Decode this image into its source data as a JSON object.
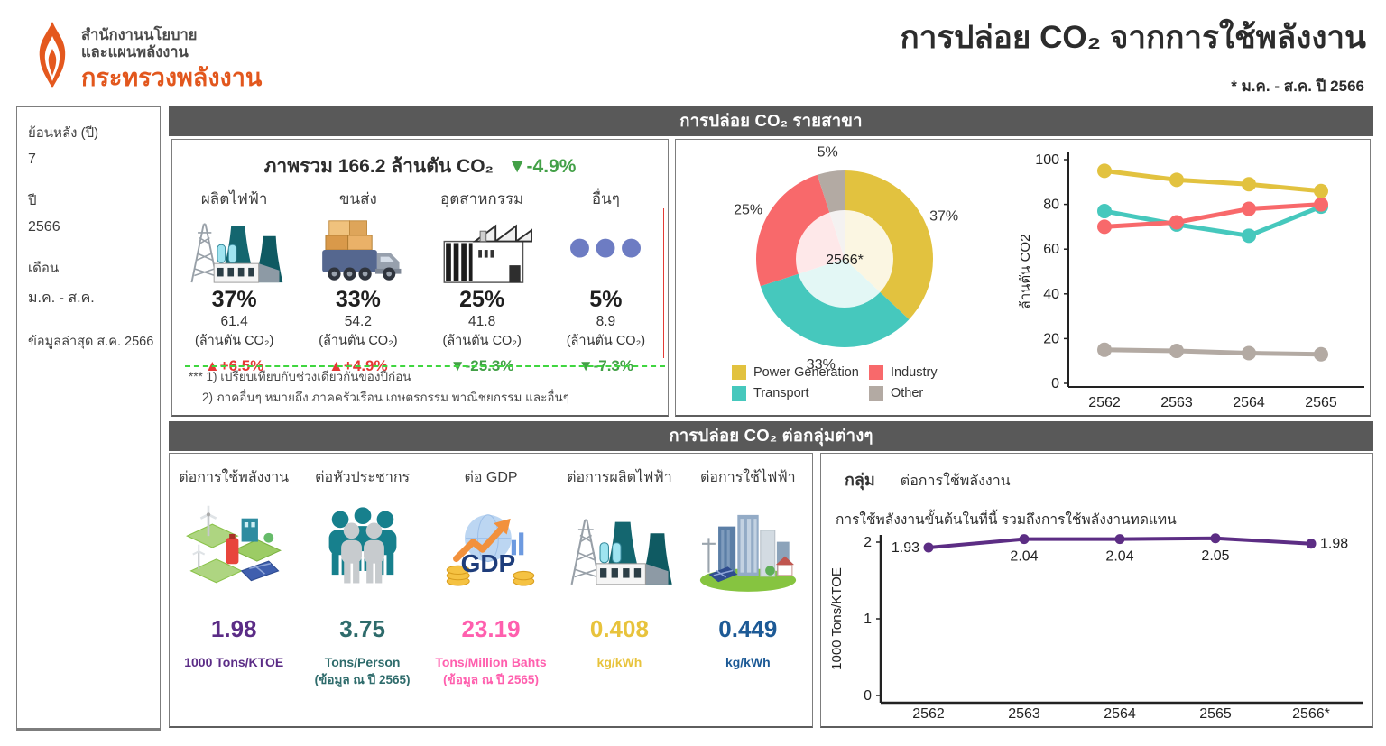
{
  "logo": {
    "line1": "สำนักงานนโยบาย",
    "line2": "และแผนพลังงาน",
    "line3": "กระทรวงพลังงาน"
  },
  "header": {
    "title": "การปล่อย CO₂ จากการใช้พลังงาน",
    "period_note": "* ม.ค. - ส.ค. ปี 2566"
  },
  "sidebar": {
    "fields": [
      {
        "label": "ย้อนหลัง (ปี)",
        "value": "7"
      },
      {
        "label": "ปี",
        "value": "2566"
      },
      {
        "label": "เดือน",
        "value": "ม.ค. - ส.ค."
      }
    ],
    "last_updated": "ข้อมูลล่าสุด ส.ค. 2566"
  },
  "sector_panel": {
    "header": "การปล่อย CO₂ รายสาขา",
    "overview_title": "ภาพรวม 166.2 ล้านตัน CO₂",
    "overview_change": "▼-4.9%",
    "overview_change_color": "#43a047",
    "categories": [
      {
        "label": "ผลิตไฟฟ้า",
        "percent": "37%",
        "value": "61.4",
        "unit": "(ล้านตัน CO₂)",
        "change": "▲+6.5%",
        "change_color": "#e53935"
      },
      {
        "label": "ขนส่ง",
        "percent": "33%",
        "value": "54.2",
        "unit": "(ล้านตัน CO₂)",
        "change": "▲+4.9%",
        "change_color": "#e53935"
      },
      {
        "label": "อุตสาหกรรม",
        "percent": "25%",
        "value": "41.8",
        "unit": "(ล้านตัน CO₂)",
        "change": "▼-25.3%",
        "change_color": "#43a047"
      },
      {
        "label": "อื่นๆ",
        "percent": "5%",
        "value": "8.9",
        "unit": "(ล้านตัน CO₂)",
        "change": "▼-7.3%",
        "change_color": "#43a047"
      }
    ],
    "footnotes": [
      "*** 1) เปรียบเทียบกับช่วงเดียวกันของปีก่อน",
      "2) ภาคอื่นๆ หมายถึง ภาคครัวเรือน เกษตรกรรม พาณิชยกรรม และอื่นๆ"
    ]
  },
  "metrics_panel": {
    "header": "การปล่อย CO₂ ต่อกลุ่มต่างๆ",
    "metrics": [
      {
        "label": "ต่อการใช้พลังงาน",
        "value": "1.98",
        "unit": "1000 Tons/KTOE",
        "note": "",
        "color": "#5b2c86"
      },
      {
        "label": "ต่อหัวประชากร",
        "value": "3.75",
        "unit": "Tons/Person",
        "note": "(ข้อมูล ณ ปี 2565)",
        "color": "#2e6b6b"
      },
      {
        "label": "ต่อ GDP",
        "value": "23.19",
        "unit": "Tons/Million Bahts",
        "note": "(ข้อมูล ณ ปี 2565)",
        "color": "#ff5fae"
      },
      {
        "label": "ต่อการผลิตไฟฟ้า",
        "value": "0.408",
        "unit": "kg/kWh",
        "note": "",
        "color": "#e8c33c"
      },
      {
        "label": "ต่อการใช้ไฟฟ้า",
        "value": "0.449",
        "unit": "kg/kWh",
        "note": "",
        "color": "#1d5a96"
      }
    ]
  },
  "intensity_panel": {
    "group_label": "กลุ่ม",
    "group_value": "ต่อการใช้พลังงาน",
    "note": "การใช้พลังงานขั้นต้นในที่นี้ รวมถึงการใช้พลังงานทดแทน"
  },
  "chart_data": [
    {
      "id": "sector_share_donut",
      "type": "pie",
      "labels": [
        "Power Generation",
        "Transport",
        "Industry",
        "Other"
      ],
      "values": [
        37,
        33,
        25,
        5
      ],
      "label_texts": [
        "37%",
        "33%",
        "25%",
        "5%"
      ],
      "colors": [
        "#e2c23f",
        "#46c8bd",
        "#f8696b",
        "#b3aaa3"
      ],
      "center_label": "2566*",
      "legend": [
        {
          "label": "Power Generation",
          "color": "#e2c23f"
        },
        {
          "label": "Industry",
          "color": "#f8696b"
        },
        {
          "label": "Transport",
          "color": "#46c8bd"
        },
        {
          "label": "Other",
          "color": "#b3aaa3"
        }
      ]
    },
    {
      "id": "sector_trend",
      "type": "line",
      "x": [
        "2562",
        "2563",
        "2564",
        "2565"
      ],
      "ylabel": "ล้านตัน CO2",
      "ylim": [
        0,
        100
      ],
      "yticks": [
        0,
        20,
        40,
        60,
        80,
        100
      ],
      "series": [
        {
          "name": "Power Generation",
          "color": "#e2c23f",
          "values": [
            95,
            91,
            89,
            86
          ]
        },
        {
          "name": "Transport",
          "color": "#46c8bd",
          "values": [
            77,
            71,
            66,
            79
          ]
        },
        {
          "name": "Industry",
          "color": "#f8696b",
          "values": [
            70,
            72,
            78,
            80
          ]
        },
        {
          "name": "Other",
          "color": "#b3aaa3",
          "values": [
            15,
            14.5,
            13.5,
            13
          ]
        }
      ]
    },
    {
      "id": "intensity_trend",
      "type": "line",
      "x": [
        "2562",
        "2563",
        "2564",
        "2565",
        "2566*"
      ],
      "ylabel": "1000 Tons/KTOE",
      "ylim": [
        0,
        2
      ],
      "yticks": [
        0,
        1,
        2
      ],
      "series": [
        {
          "name": "ต่อการใช้พลังงาน",
          "color": "#5c2d84",
          "values": [
            1.93,
            2.04,
            2.04,
            2.05,
            1.98
          ]
        }
      ],
      "point_labels": [
        "1.93",
        "2.04",
        "2.04",
        "2.05",
        "1.98"
      ]
    }
  ]
}
